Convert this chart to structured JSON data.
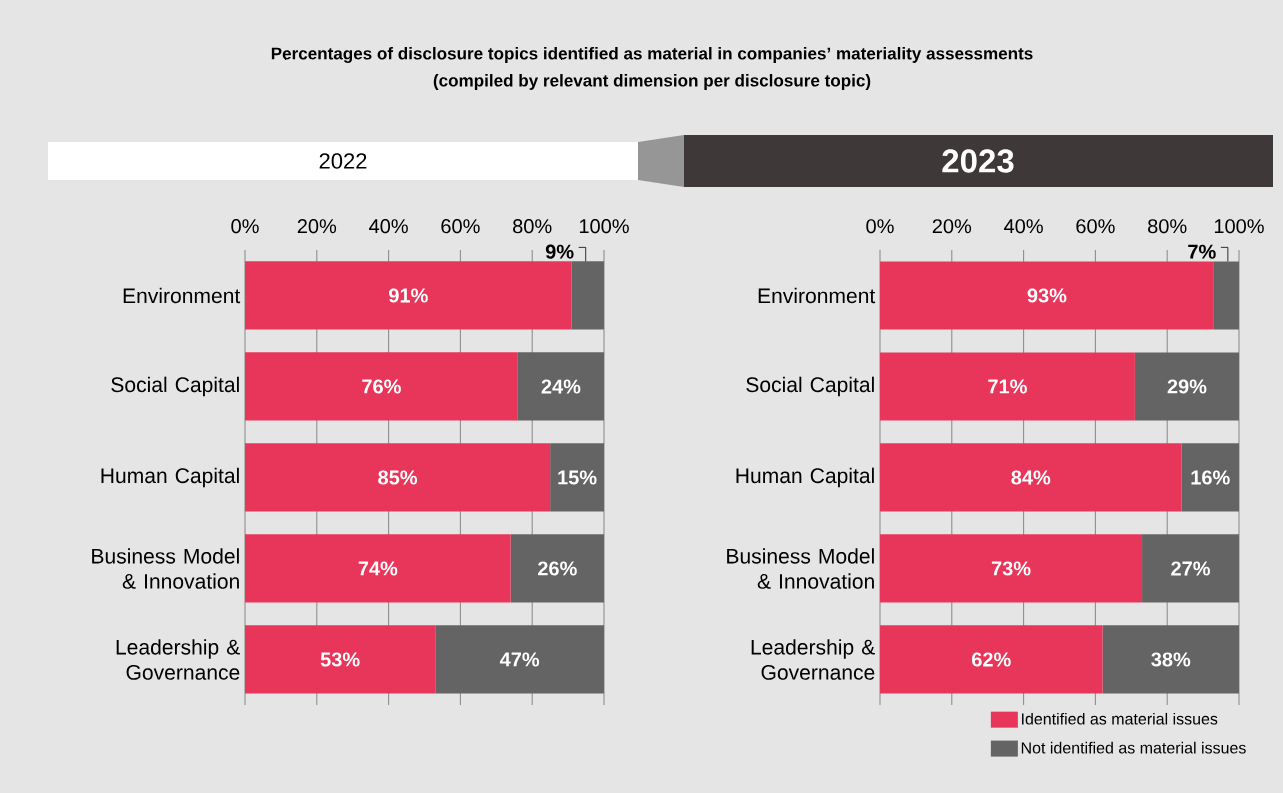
{
  "chart_data": [
    {
      "type": "bar",
      "orientation": "horizontal",
      "stacked": true,
      "title": "Percentages of disclosure topics identified as material in companies’ materiality assessments",
      "subtitle": "(compiled by relevant dimension per disclosure topic)",
      "annotations": [
        "2022"
      ],
      "categories": [
        "Environment",
        "Social Capital",
        "Human Capital",
        "Business Model & Innovation",
        "Leadership & Governance"
      ],
      "series": [
        {
          "color": "#e8365a",
          "values": [
            91,
            76,
            85,
            74,
            53
          ],
          "value_labels": [
            "91%",
            "76%",
            "85%",
            "74%",
            "53%"
          ]
        },
        {
          "color": "#646464",
          "values": [
            9,
            24,
            15,
            26,
            47
          ],
          "value_labels": [
            "9%",
            "24%",
            "15%",
            "26%",
            "47%"
          ]
        }
      ],
      "xlim": [
        0,
        100
      ],
      "xticks": [
        {
          "value": 0,
          "label": "0%"
        },
        {
          "value": 20,
          "label": "20%"
        },
        {
          "value": 40,
          "label": "40%"
        },
        {
          "value": 60,
          "label": "60%"
        },
        {
          "value": 80,
          "label": "80%"
        },
        {
          "value": 100,
          "label": "100%"
        }
      ],
      "grid": "x",
      "legend": false
    },
    {
      "type": "bar",
      "orientation": "horizontal",
      "stacked": true,
      "title": "2023",
      "categories": [
        "Environment",
        "Social Capital",
        "Human Capital",
        "Business Model & Innovation",
        "Leadership & Governance"
      ],
      "series": [
        {
          "name": "Identified as material issues",
          "color": "#e8365a",
          "values": [
            93,
            71,
            84,
            73,
            62
          ],
          "value_labels": [
            "93%",
            "71%",
            "84%",
            "73%",
            "62%"
          ]
        },
        {
          "name": "Not identified as material issues",
          "color": "#646464",
          "values": [
            7,
            29,
            16,
            27,
            38
          ],
          "value_labels": [
            "7%",
            "29%",
            "16%",
            "27%",
            "38%"
          ]
        }
      ],
      "xlim": [
        0,
        100
      ],
      "xticks": [
        {
          "value": 0,
          "label": "0%"
        },
        {
          "value": 20,
          "label": "20%"
        },
        {
          "value": 40,
          "label": "40%"
        },
        {
          "value": 60,
          "label": "60%"
        },
        {
          "value": 80,
          "label": "80%"
        },
        {
          "value": 100,
          "label": "100%"
        }
      ],
      "grid": "x",
      "legend": "bottom right"
    }
  ]
}
